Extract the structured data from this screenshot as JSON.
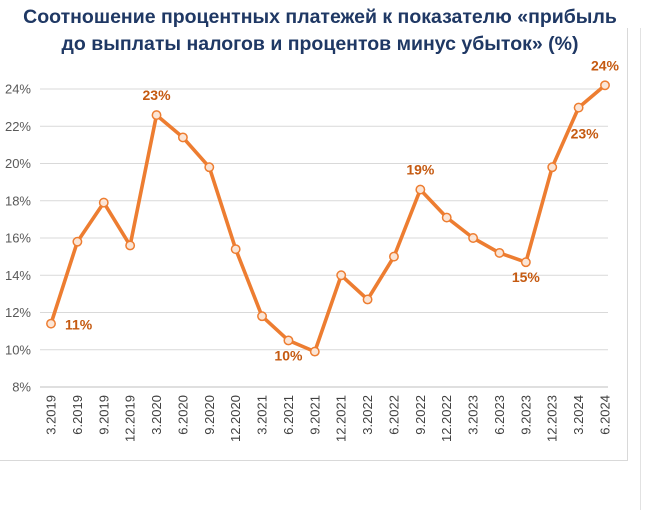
{
  "title_line1": "Соотношение процентных платежей к показателю «прибыль",
  "title_line2": "до выплаты налогов и процентов минус убыток»  (%)",
  "colors": {
    "series": "#ed7d31",
    "label": "#c55a11",
    "title": "#1f3864",
    "marker_fill": "#fbe5d6"
  },
  "chart_data": {
    "type": "line",
    "title": "Соотношение процентных платежей к показателю «прибыль до выплаты налогов и процентов минус убыток»  (%)",
    "xlabel": "",
    "ylabel": "",
    "ylim": [
      8,
      24
    ],
    "yticks": [
      "8%",
      "10%",
      "12%",
      "14%",
      "16%",
      "18%",
      "20%",
      "22%",
      "24%"
    ],
    "ytick_values": [
      8,
      10,
      12,
      14,
      16,
      18,
      20,
      22,
      24
    ],
    "grid": true,
    "legend": "none",
    "categories": [
      "3.2019",
      "6.2019",
      "9.2019",
      "12.2019",
      "3.2020",
      "6.2020",
      "9.2020",
      "12.2020",
      "3.2021",
      "6.2021",
      "9.2021",
      "12.2021",
      "3.2022",
      "6.2022",
      "9.2022",
      "12.2022",
      "3.2023",
      "6.2023",
      "9.2023",
      "12.2023",
      "3.2024",
      "6.2024"
    ],
    "series": [
      {
        "name": "Соотношение процентных платежей",
        "values": [
          11.4,
          15.8,
          17.9,
          15.6,
          22.6,
          21.4,
          19.8,
          15.4,
          11.8,
          10.5,
          9.9,
          14.0,
          12.7,
          15.0,
          18.6,
          17.1,
          16.0,
          15.2,
          14.7,
          19.8,
          23.0,
          24.2
        ]
      }
    ],
    "data_labels": [
      {
        "index": 0,
        "text": "11%",
        "placement": "right"
      },
      {
        "index": 4,
        "text": "23%",
        "placement": "above"
      },
      {
        "index": 9,
        "text": "10%",
        "placement": "below"
      },
      {
        "index": 14,
        "text": "19%",
        "placement": "above"
      },
      {
        "index": 18,
        "text": "15%",
        "placement": "below"
      },
      {
        "index": 20,
        "text": "23%",
        "placement": "below-right"
      },
      {
        "index": 21,
        "text": "24%",
        "placement": "above"
      }
    ]
  }
}
